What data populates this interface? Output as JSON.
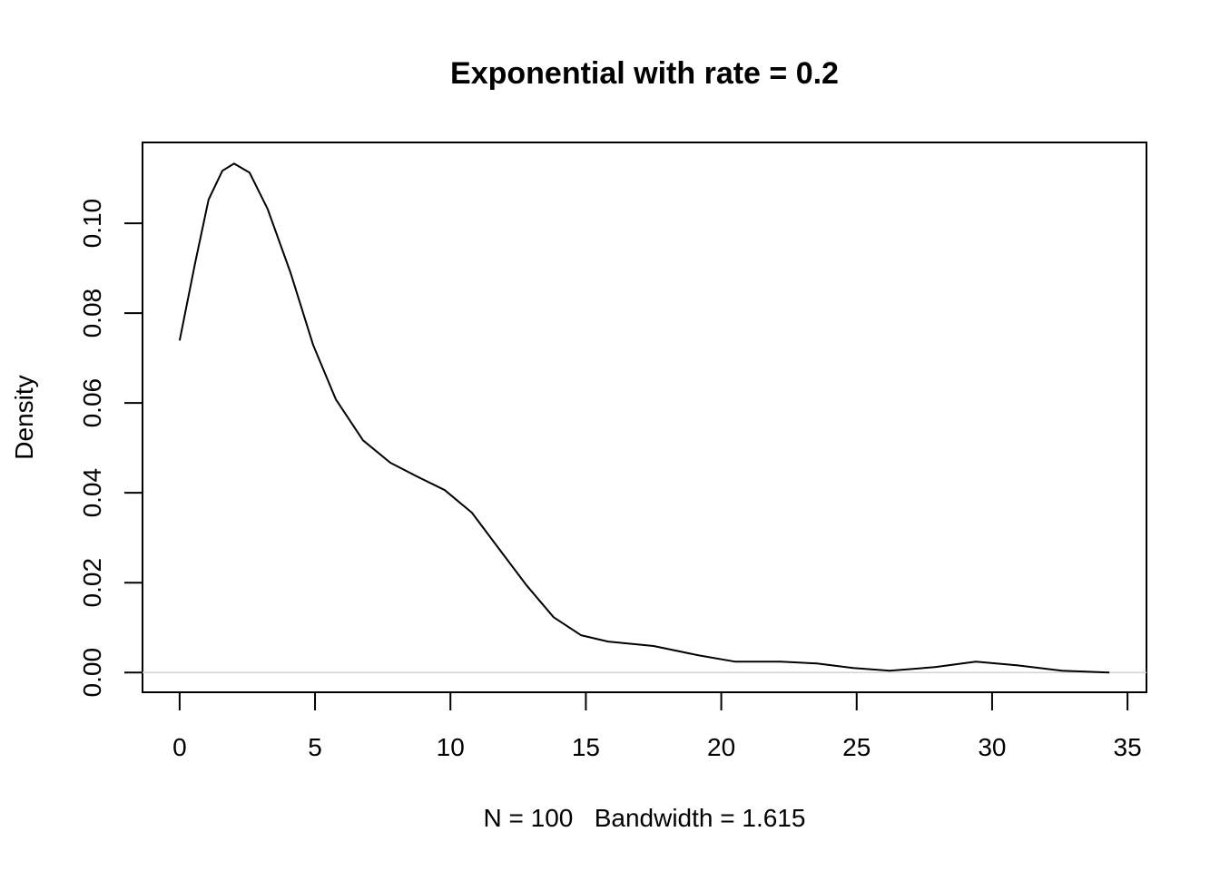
{
  "chart_data": {
    "type": "line",
    "title": "Exponential with rate = 0.2",
    "xlabel": "N = 100   Bandwidth = 1.615",
    "ylabel": "Density",
    "x": [
      0,
      0.57,
      1.07,
      1.58,
      2.01,
      2.58,
      3.25,
      4.09,
      4.93,
      5.77,
      6.77,
      7.78,
      8.78,
      9.79,
      10.79,
      11.8,
      12.81,
      13.81,
      14.82,
      15.82,
      17.5,
      19.18,
      20.52,
      22.19,
      23.53,
      24.87,
      26.22,
      27.89,
      29.4,
      30.91,
      32.58,
      34.33
    ],
    "series": [
      {
        "color": "#000000",
        "values": [
          0.0739,
          0.0911,
          0.1053,
          0.1117,
          0.1133,
          0.1113,
          0.1032,
          0.0891,
          0.0729,
          0.0608,
          0.0517,
          0.0467,
          0.0436,
          0.0406,
          0.0356,
          0.0275,
          0.0194,
          0.0123,
          0.0083,
          0.0069,
          0.0059,
          0.0038,
          0.0024,
          0.0024,
          0.002,
          0.001,
          0.0004,
          0.0012,
          0.0024,
          0.0016,
          0.0004,
          0
        ]
      }
    ],
    "xlim": [
      -1.37,
      35.7
    ],
    "ylim": [
      -0.0044,
      0.118
    ],
    "xticks": [
      0,
      5,
      10,
      15,
      20,
      25,
      30,
      35
    ],
    "yticks": [
      {
        "value": 0,
        "label": "0.00"
      },
      {
        "value": 0.02,
        "label": "0.02"
      },
      {
        "value": 0.04,
        "label": "0.04"
      },
      {
        "value": 0.06,
        "label": "0.06"
      },
      {
        "value": 0.08,
        "label": "0.08"
      },
      {
        "value": 0.1,
        "label": "0.10"
      }
    ],
    "zero_line": true,
    "zero_line_color": "#d3d3d3"
  }
}
